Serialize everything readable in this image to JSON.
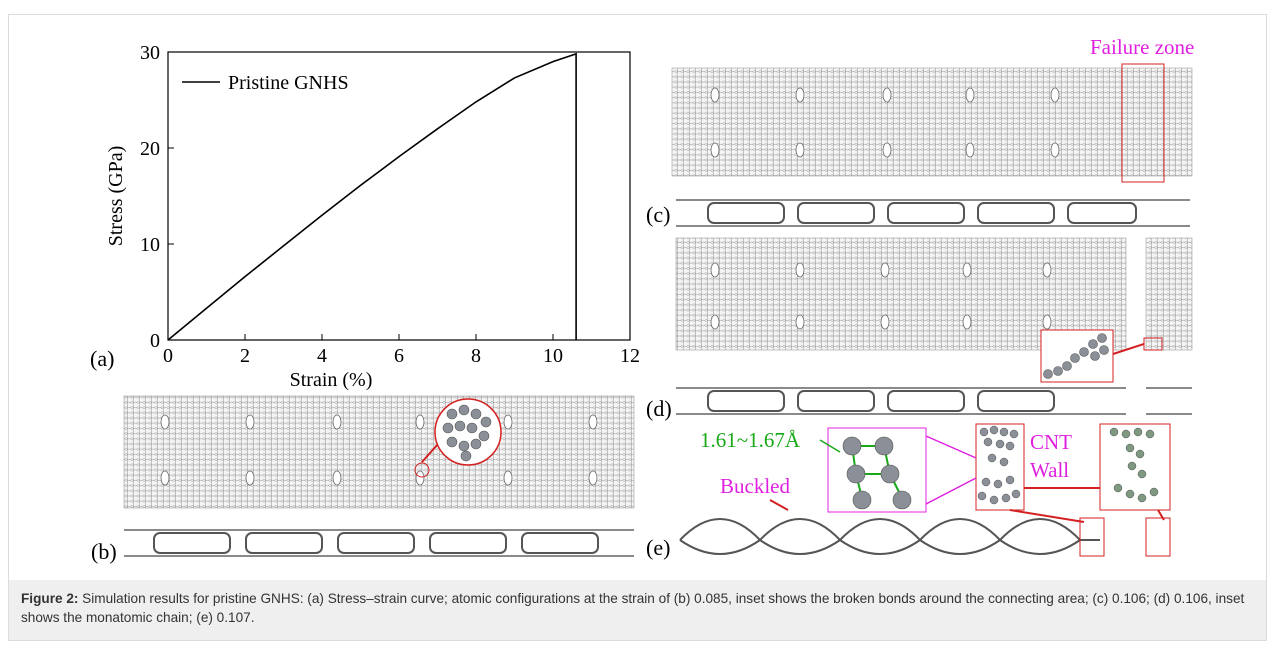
{
  "figure": {
    "panel_labels": {
      "a": "(a)",
      "b": "(b)",
      "c": "(c)",
      "d": "(d)",
      "e": "(e)"
    },
    "annotations": {
      "failure_zone": "Failure zone",
      "bond_length": "1.61~1.67Å",
      "cnt_wall_line1": "CNT",
      "cnt_wall_line2": "Wall",
      "buckled": "Buckled"
    },
    "colors": {
      "magenta": "#e020e0",
      "red": "#d42020",
      "green": "#18a818",
      "atom": "#8a8f98",
      "lattice": "#707070"
    }
  },
  "chart_data": {
    "type": "line",
    "xlabel": "Strain (%)",
    "ylabel": "Stress (GPa)",
    "xlim": [
      0,
      12
    ],
    "ylim": [
      0,
      30
    ],
    "xticks": [
      0,
      2,
      4,
      6,
      8,
      10,
      12
    ],
    "yticks": [
      0,
      10,
      20,
      30
    ],
    "legend_placement": "top-left",
    "grid": false,
    "series": [
      {
        "name": "Pristine GNHS",
        "x": [
          0,
          1,
          2,
          3,
          4,
          5,
          6,
          7,
          8,
          9,
          10,
          10.6,
          10.6,
          10.6
        ],
        "y": [
          0,
          3.3,
          6.6,
          9.8,
          13.0,
          16.1,
          19.1,
          22.0,
          24.8,
          27.3,
          29.0,
          29.8,
          15,
          0
        ]
      }
    ]
  },
  "caption": {
    "label": "Figure 2:",
    "text": " Simulation results for pristine GNHS: (a) Stress–strain curve; atomic configurations at the strain of (b) 0.085, inset shows the broken bonds around the connecting area; (c) 0.106; (d) 0.106, inset shows the monatomic chain; (e) 0.107."
  }
}
